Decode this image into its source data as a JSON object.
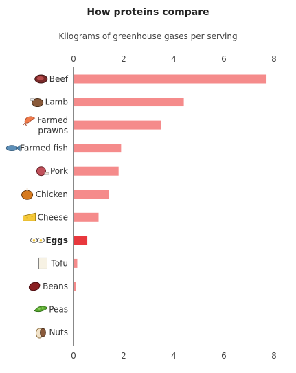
{
  "chart_data": {
    "type": "bar",
    "orientation": "horizontal",
    "title": "How proteins compare",
    "subtitle": "Kilograms of greenhouse gases per serving",
    "xlim": [
      0,
      8
    ],
    "ticks": [
      0,
      2,
      4,
      6,
      8
    ],
    "categories": [
      "Beef",
      "Lamb",
      "Farmed prawns",
      "Farmed fish",
      "Pork",
      "Chicken",
      "Cheese",
      "Eggs",
      "Tofu",
      "Beans",
      "Peas",
      "Nuts"
    ],
    "icons": [
      "steak-icon",
      "lamb-icon",
      "prawn-icon",
      "fish-icon",
      "ham-icon",
      "roast-chicken-icon",
      "cheese-icon",
      "eggs-icon",
      "tofu-icon",
      "beans-icon",
      "peas-icon",
      "nuts-icon"
    ],
    "values": [
      7.7,
      4.4,
      3.5,
      1.9,
      1.8,
      1.4,
      1.0,
      0.55,
      0.15,
      0.1,
      0.0,
      0.0
    ],
    "highlight": "Eggs",
    "bar_color": "#f58b8b",
    "highlight_color": "#e8383d",
    "grid": false,
    "legend": "none"
  }
}
